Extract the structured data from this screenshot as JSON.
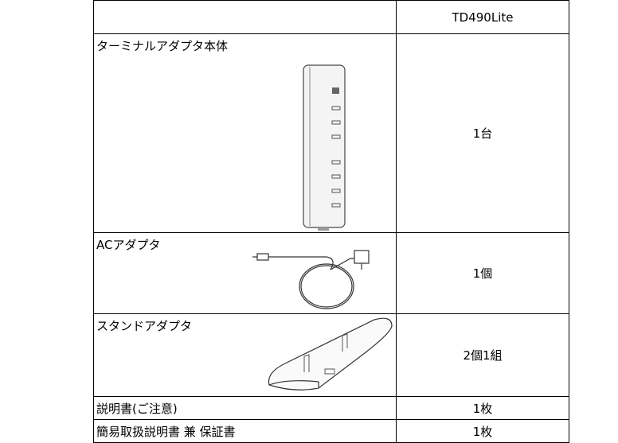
{
  "table": {
    "header": {
      "model": "TD490Lite"
    },
    "rows": [
      {
        "item": "ターミナルアダプタ本体",
        "qty": "1台"
      },
      {
        "item": "ACアダプタ",
        "qty": "1個"
      },
      {
        "item": "スタンドアダプタ",
        "qty": "2個1組"
      },
      {
        "item": "説明書(ご注意)",
        "qty": "1枚"
      },
      {
        "item": "簡易取扱説明書 兼 保証書",
        "qty": "1枚"
      }
    ]
  }
}
